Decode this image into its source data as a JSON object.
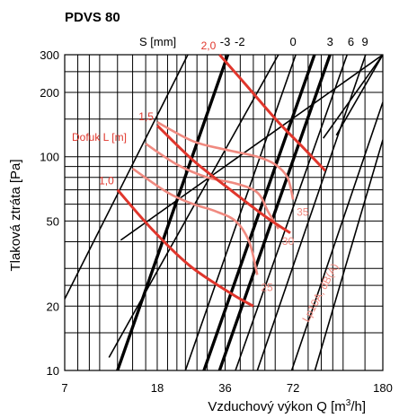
{
  "chart_data": {
    "type": "line",
    "title": "PDVS 80",
    "xlabel": "Vzduchový výkon Q [m³/h]",
    "ylabel": "Tlaková ztráta [Pa]",
    "x_scale": "log",
    "y_scale": "log",
    "xlim": [
      7,
      180
    ],
    "ylim": [
      10,
      300
    ],
    "x_ticks": [
      7,
      18,
      36,
      72,
      180
    ],
    "y_ticks": [
      10,
      20,
      50,
      100,
      200,
      300
    ],
    "x_grid": [
      7,
      8,
      9,
      10,
      12,
      14,
      16,
      18,
      20,
      22,
      24,
      27,
      30,
      36,
      42,
      48,
      54,
      60,
      72,
      84,
      96,
      108,
      120,
      150,
      180
    ],
    "y_grid": [
      10,
      15,
      20,
      25,
      30,
      40,
      50,
      60,
      70,
      80,
      90,
      100,
      150,
      200,
      250,
      300
    ],
    "grid": true,
    "s_axis": {
      "label": "S [mm]",
      "values": [
        "-3",
        "-2",
        "0",
        "3",
        "6",
        "9"
      ],
      "lines": [
        {
          "label": "-3",
          "bold": true,
          "points": [
            [
              12.0,
              10
            ],
            [
              37.0,
              300
            ]
          ]
        },
        {
          "label": "-2",
          "bold": true,
          "points": [
            [
              29.0,
              10
            ],
            [
              89.6,
              300
            ]
          ]
        },
        {
          "label": "0",
          "bold": true,
          "points": [
            [
              34.0,
              10
            ],
            [
              105.0,
              300
            ]
          ]
        },
        {
          "label": "3",
          "bold": false,
          "points": [
            [
              12.4,
              40.7
            ],
            [
              180,
              300
            ]
          ]
        },
        {
          "label": "6",
          "bold": false,
          "points": [
            [
              98.0,
              122
            ],
            [
              180,
              300
            ]
          ]
        },
        {
          "label": "9",
          "bold": false,
          "points": [
            [
              112.0,
              126
            ],
            [
              180,
              300
            ]
          ]
        },
        {
          "label": "",
          "bold": false,
          "points": [
            [
              7.0,
              21.6
            ],
            [
              24.6,
              300
            ]
          ]
        },
        {
          "label": "",
          "bold": false,
          "points": [
            [
              11.0,
              11.5
            ],
            [
              62.0,
              300
            ]
          ]
        },
        {
          "label": "",
          "bold": false,
          "points": [
            [
              24.0,
              10
            ],
            [
              74.0,
              300
            ]
          ]
        },
        {
          "label": "",
          "bold": false,
          "points": [
            [
              40.0,
              10
            ],
            [
              125.0,
              300
            ]
          ]
        },
        {
          "label": "",
          "bold": false,
          "points": [
            [
              50.0,
              10
            ],
            [
              151.0,
              300
            ]
          ]
        },
        {
          "label": "",
          "bold": false,
          "points": [
            [
              71.0,
              10
            ],
            [
              180.0,
              180
            ]
          ]
        },
        {
          "label": "",
          "bold": false,
          "points": [
            [
              90.0,
              10
            ],
            [
              180.0,
              120
            ]
          ]
        }
      ]
    },
    "series": [
      {
        "name": "Dofuk L [m]",
        "label": "1,0",
        "color": "#e0362c",
        "points": [
          [
            12,
            70
          ],
          [
            17,
            46
          ],
          [
            25,
            31
          ],
          [
            38,
            23
          ],
          [
            48,
            20
          ]
        ]
      },
      {
        "name": "Dofuk L [m]",
        "label": "1,5",
        "color": "#e0362c",
        "points": [
          [
            18,
            140
          ],
          [
            26,
            96
          ],
          [
            38,
            70
          ],
          [
            55,
            52
          ],
          [
            70,
            44
          ]
        ]
      },
      {
        "name": "Dofuk L [m]",
        "label": "2,0",
        "color": "#e0362c",
        "points": [
          [
            34,
            300
          ],
          [
            44,
            220
          ],
          [
            62,
            145
          ],
          [
            80,
            110
          ],
          [
            100,
            86
          ]
        ]
      }
    ],
    "noise_series": [
      {
        "name": "Lp10A, dB(A)",
        "label": "25",
        "color": "#f08a80",
        "points": [
          [
            14,
            88
          ],
          [
            20,
            68
          ],
          [
            26,
            60
          ],
          [
            32,
            56
          ],
          [
            40,
            50
          ],
          [
            46,
            40
          ],
          [
            50,
            28
          ]
        ]
      },
      {
        "name": "Lp10A, dB(A)",
        "label": "30",
        "color": "#f08a80",
        "points": [
          [
            16,
            115
          ],
          [
            22,
            92
          ],
          [
            30,
            80
          ],
          [
            40,
            75
          ],
          [
            50,
            68
          ],
          [
            56,
            55
          ],
          [
            62,
            46
          ]
        ]
      },
      {
        "name": "Lp10A, dB(A)",
        "label": "35",
        "color": "#f08a80",
        "points": [
          [
            18,
            145
          ],
          [
            26,
            118
          ],
          [
            36,
            108
          ],
          [
            50,
            100
          ],
          [
            60,
            92
          ],
          [
            68,
            80
          ],
          [
            72,
            63
          ]
        ]
      }
    ],
    "annotations": {
      "dofuk_label": "Dofuk L [m]",
      "noise_axis_label": "Lp10A, dB(A)"
    }
  }
}
